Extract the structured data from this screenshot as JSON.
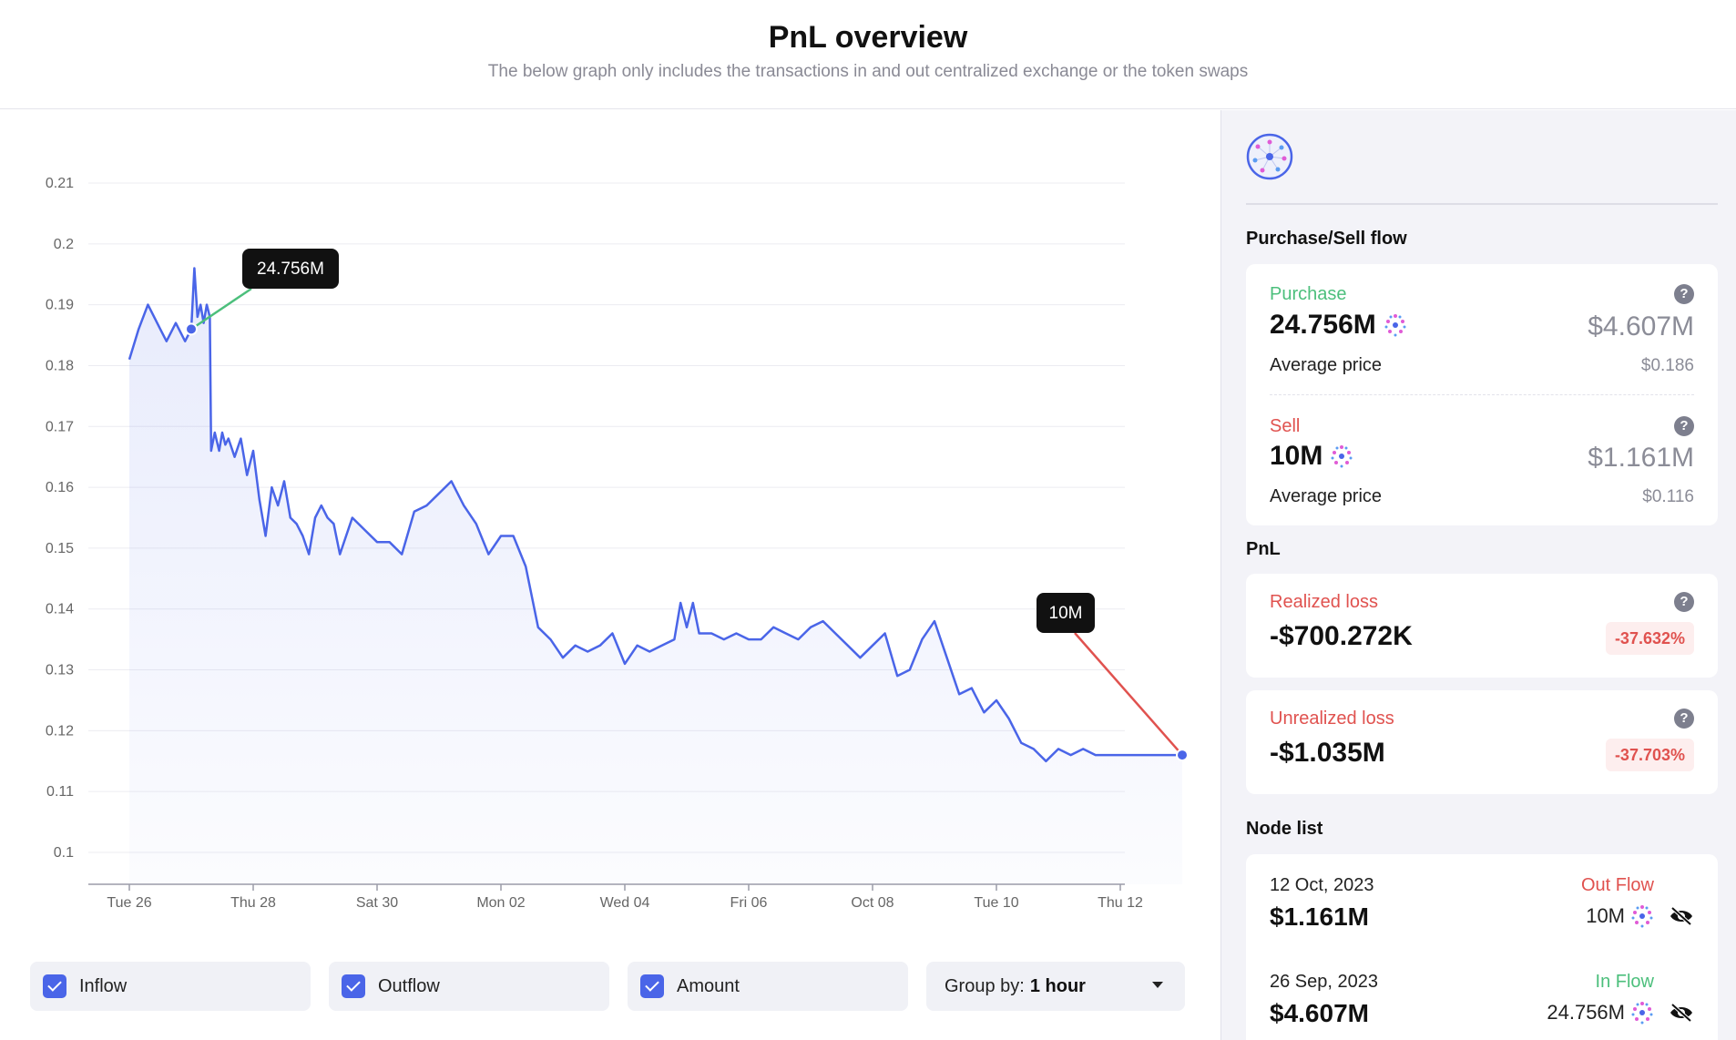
{
  "header": {
    "title": "PnL overview",
    "subtitle": "The below graph only includes the transactions in and out centralized exchange or the token swaps"
  },
  "colors": {
    "line": "#4a65e8",
    "purchase": "#4cbf7c",
    "sell": "#e0524f",
    "tooltip_bg": "#111111"
  },
  "chart_data": {
    "type": "line",
    "xlabel": "",
    "ylabel": "",
    "ylim": [
      0.1,
      0.21
    ],
    "y_ticks": [
      "0.21",
      "0.2",
      "0.19",
      "0.18",
      "0.17",
      "0.16",
      "0.15",
      "0.14",
      "0.13",
      "0.12",
      "0.11",
      "0.1"
    ],
    "x_ticks": [
      "Tue 26",
      "Thu 28",
      "Sat 30",
      "Mon 02",
      "Wed 04",
      "Fri 06",
      "Oct 08",
      "Tue 10",
      "Thu 12"
    ],
    "x_tick_days": [
      1,
      3,
      5,
      7,
      9,
      11,
      13,
      15,
      17
    ],
    "grid": true,
    "legend": "none",
    "area_fill": true,
    "series": [
      {
        "x": [
          0.0,
          0.15,
          0.3,
          0.5,
          0.6,
          0.75,
          0.9,
          1.0,
          1.05,
          1.1,
          1.15,
          1.2,
          1.25,
          1.3,
          1.32,
          1.38,
          1.45,
          1.5,
          1.55,
          1.6,
          1.7,
          1.8,
          1.9,
          2.0,
          2.1,
          2.2,
          2.3,
          2.4,
          2.5,
          2.6,
          2.7,
          2.8,
          2.9,
          3.0,
          3.1,
          3.2,
          3.3,
          3.4,
          3.5,
          3.6,
          3.8,
          4.0,
          4.2,
          4.4,
          4.6,
          4.8,
          5.0,
          5.2,
          5.4,
          5.6,
          5.8,
          6.0,
          6.2,
          6.4,
          6.6,
          6.8,
          7.0,
          7.2,
          7.4,
          7.6,
          7.8,
          8.0,
          8.2,
          8.4,
          8.6,
          8.8,
          8.9,
          9.0,
          9.1,
          9.2,
          9.4,
          9.6,
          9.8,
          10.0,
          10.2,
          10.4,
          10.6,
          10.8,
          11.0,
          11.2,
          11.4,
          11.6,
          11.8,
          12.0,
          12.2,
          12.4,
          12.6,
          12.8,
          13.0,
          13.2,
          13.4,
          13.6,
          13.8,
          14.0,
          14.2,
          14.4,
          14.6,
          14.8,
          15.0,
          15.2,
          15.4,
          15.6,
          15.8,
          16.0,
          16.2,
          16.4,
          16.6,
          16.8,
          17.0
        ],
        "values": [
          0.181,
          0.186,
          0.19,
          0.186,
          0.184,
          0.187,
          0.184,
          0.186,
          0.196,
          0.188,
          0.19,
          0.187,
          0.19,
          0.188,
          0.166,
          0.169,
          0.166,
          0.169,
          0.167,
          0.168,
          0.165,
          0.168,
          0.162,
          0.166,
          0.158,
          0.152,
          0.16,
          0.157,
          0.161,
          0.155,
          0.154,
          0.152,
          0.149,
          0.155,
          0.157,
          0.155,
          0.154,
          0.149,
          0.152,
          0.155,
          0.153,
          0.151,
          0.151,
          0.149,
          0.156,
          0.157,
          0.159,
          0.161,
          0.157,
          0.154,
          0.149,
          0.152,
          0.152,
          0.147,
          0.137,
          0.135,
          0.132,
          0.134,
          0.133,
          0.134,
          0.136,
          0.131,
          0.134,
          0.133,
          0.134,
          0.135,
          0.141,
          0.137,
          0.141,
          0.136,
          0.136,
          0.135,
          0.136,
          0.135,
          0.135,
          0.137,
          0.136,
          0.135,
          0.137,
          0.138,
          0.136,
          0.134,
          0.132,
          0.134,
          0.136,
          0.129,
          0.13,
          0.135,
          0.138,
          0.132,
          0.126,
          0.127,
          0.123,
          0.125,
          0.122,
          0.118,
          0.117,
          0.115,
          0.117,
          0.116,
          0.117,
          0.116,
          0.116,
          0.116,
          0.116,
          0.116,
          0.116,
          0.116,
          0.116
        ]
      }
    ],
    "annotations": [
      {
        "label": "24.756M",
        "x": 1.0,
        "y": 0.186,
        "kind": "purchase"
      },
      {
        "label": "10M",
        "x": 17.0,
        "y": 0.116,
        "kind": "sell"
      }
    ]
  },
  "controls": {
    "inflow_label": "Inflow",
    "outflow_label": "Outflow",
    "amount_label": "Amount",
    "group_by_label": "Group by:",
    "group_by_value": "1 hour"
  },
  "sidebar": {
    "purchase_sell_title": "Purchase/Sell flow",
    "purchase": {
      "label": "Purchase",
      "amount": "24.756M",
      "usd": "$4.607M",
      "avg_label": "Average price",
      "avg_value": "$0.186"
    },
    "sell": {
      "label": "Sell",
      "amount": "10M",
      "usd": "$1.161M",
      "avg_label": "Average price",
      "avg_value": "$0.116"
    },
    "pnl_title": "PnL",
    "realized": {
      "label": "Realized loss",
      "value": "-$700.272K",
      "pct": "-37.632%"
    },
    "unrealized": {
      "label": "Unrealized loss",
      "value": "-$1.035M",
      "pct": "-37.703%"
    },
    "node_list_title": "Node list",
    "nodes": [
      {
        "date": "12 Oct, 2023",
        "usd": "$1.161M",
        "flow": "Out Flow",
        "amount": "10M"
      },
      {
        "date": "26 Sep, 2023",
        "usd": "$4.607M",
        "flow": "In Flow",
        "amount": "24.756M"
      }
    ]
  }
}
